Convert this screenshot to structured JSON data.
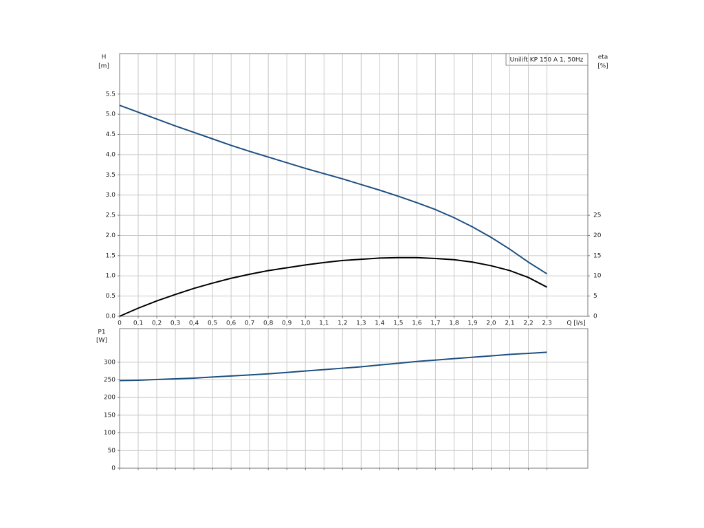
{
  "chart_data": [
    {
      "type": "line",
      "title": "Unilift KP 150 A 1, 50Hz",
      "xlabel": "Q [l/s]",
      "ylabel": "H",
      "yunit": "[m]",
      "y2label": "eta",
      "y2unit": "[%]",
      "x": [
        0,
        0.1,
        0.2,
        0.3,
        0.4,
        0.5,
        0.6,
        0.7,
        0.8,
        0.9,
        1.0,
        1.1,
        1.2,
        1.3,
        1.4,
        1.5,
        1.6,
        1.7,
        1.8,
        1.9,
        2.0,
        2.1,
        2.2,
        2.3
      ],
      "series": [
        {
          "name": "H",
          "color": "#1d4f80",
          "values": [
            5.22,
            5.05,
            4.88,
            4.71,
            4.55,
            4.39,
            4.23,
            4.08,
            3.94,
            3.8,
            3.66,
            3.53,
            3.4,
            3.26,
            3.12,
            2.97,
            2.81,
            2.64,
            2.44,
            2.21,
            1.95,
            1.66,
            1.34,
            1.05
          ]
        },
        {
          "name": "eta",
          "color": "#000000",
          "axis": "y2",
          "values": [
            0,
            2.0,
            3.8,
            5.4,
            6.9,
            8.2,
            9.4,
            10.4,
            11.3,
            12.0,
            12.7,
            13.3,
            13.8,
            14.1,
            14.4,
            14.5,
            14.5,
            14.3,
            14.0,
            13.4,
            12.5,
            11.3,
            9.6,
            7.2
          ]
        }
      ],
      "xlim": [
        0,
        2.52
      ],
      "xticks": [
        0,
        {
          "value": 0.1,
          "label": "0,1"
        },
        {
          "value": 0.2,
          "label": "0,2"
        },
        {
          "value": 0.3,
          "label": "0,3"
        },
        {
          "value": 0.4,
          "label": "0,4"
        },
        {
          "value": 0.5,
          "label": "0,5"
        },
        {
          "value": 0.6,
          "label": "0,6"
        },
        {
          "value": 0.7,
          "label": "0,7"
        },
        {
          "value": 0.8,
          "label": "0,8"
        },
        {
          "value": 0.9,
          "label": "0,9"
        },
        {
          "value": 1.0,
          "label": "1,0"
        },
        {
          "value": 1.1,
          "label": "1,1"
        },
        {
          "value": 1.2,
          "label": "1,2"
        },
        {
          "value": 1.3,
          "label": "1,3"
        },
        {
          "value": 1.4,
          "label": "1,4"
        },
        {
          "value": 1.5,
          "label": "1,5"
        },
        {
          "value": 1.6,
          "label": "1,6"
        },
        {
          "value": 1.7,
          "label": "1,7"
        },
        {
          "value": 1.8,
          "label": "1,8"
        },
        {
          "value": 1.9,
          "label": "1,9"
        },
        {
          "value": 2.0,
          "label": "2,0"
        },
        {
          "value": 2.1,
          "label": "2,1"
        },
        {
          "value": 2.2,
          "label": "2,2"
        },
        {
          "value": 2.3,
          "label": "2,3"
        }
      ],
      "ylim": [
        0,
        6.5
      ],
      "yticks": [
        {
          "value": 0,
          "label": "0.0"
        },
        0.5,
        {
          "value": 1,
          "label": "1.0"
        },
        1.5,
        {
          "value": 2,
          "label": "2.0"
        },
        2.5,
        {
          "value": 3,
          "label": "3.0"
        },
        3.5,
        {
          "value": 4,
          "label": "4.0"
        },
        4.5,
        {
          "value": 5,
          "label": "5.0"
        },
        5.5
      ],
      "y2lim": [
        0,
        65
      ],
      "y2ticks": [
        0,
        5,
        10,
        15,
        20,
        25
      ],
      "grid": true
    },
    {
      "type": "line",
      "ylabel": "P1",
      "yunit": "[W]",
      "x": [
        0,
        0.1,
        0.2,
        0.3,
        0.4,
        0.5,
        0.6,
        0.7,
        0.8,
        0.9,
        1.0,
        1.1,
        1.2,
        1.3,
        1.4,
        1.5,
        1.6,
        1.7,
        1.8,
        1.9,
        2.0,
        2.1,
        2.2,
        2.3
      ],
      "series": [
        {
          "name": "P1",
          "color": "#1d4f80",
          "values": [
            248,
            249,
            251,
            253,
            255,
            258,
            261,
            264,
            267,
            271,
            275,
            279,
            283,
            287,
            292,
            297,
            302,
            306,
            310,
            314,
            318,
            322,
            325,
            328
          ]
        }
      ],
      "xlim": [
        0,
        2.52
      ],
      "ylim": [
        0,
        395
      ],
      "yticks": [
        0,
        50,
        100,
        150,
        200,
        250,
        300
      ],
      "grid": true
    }
  ]
}
